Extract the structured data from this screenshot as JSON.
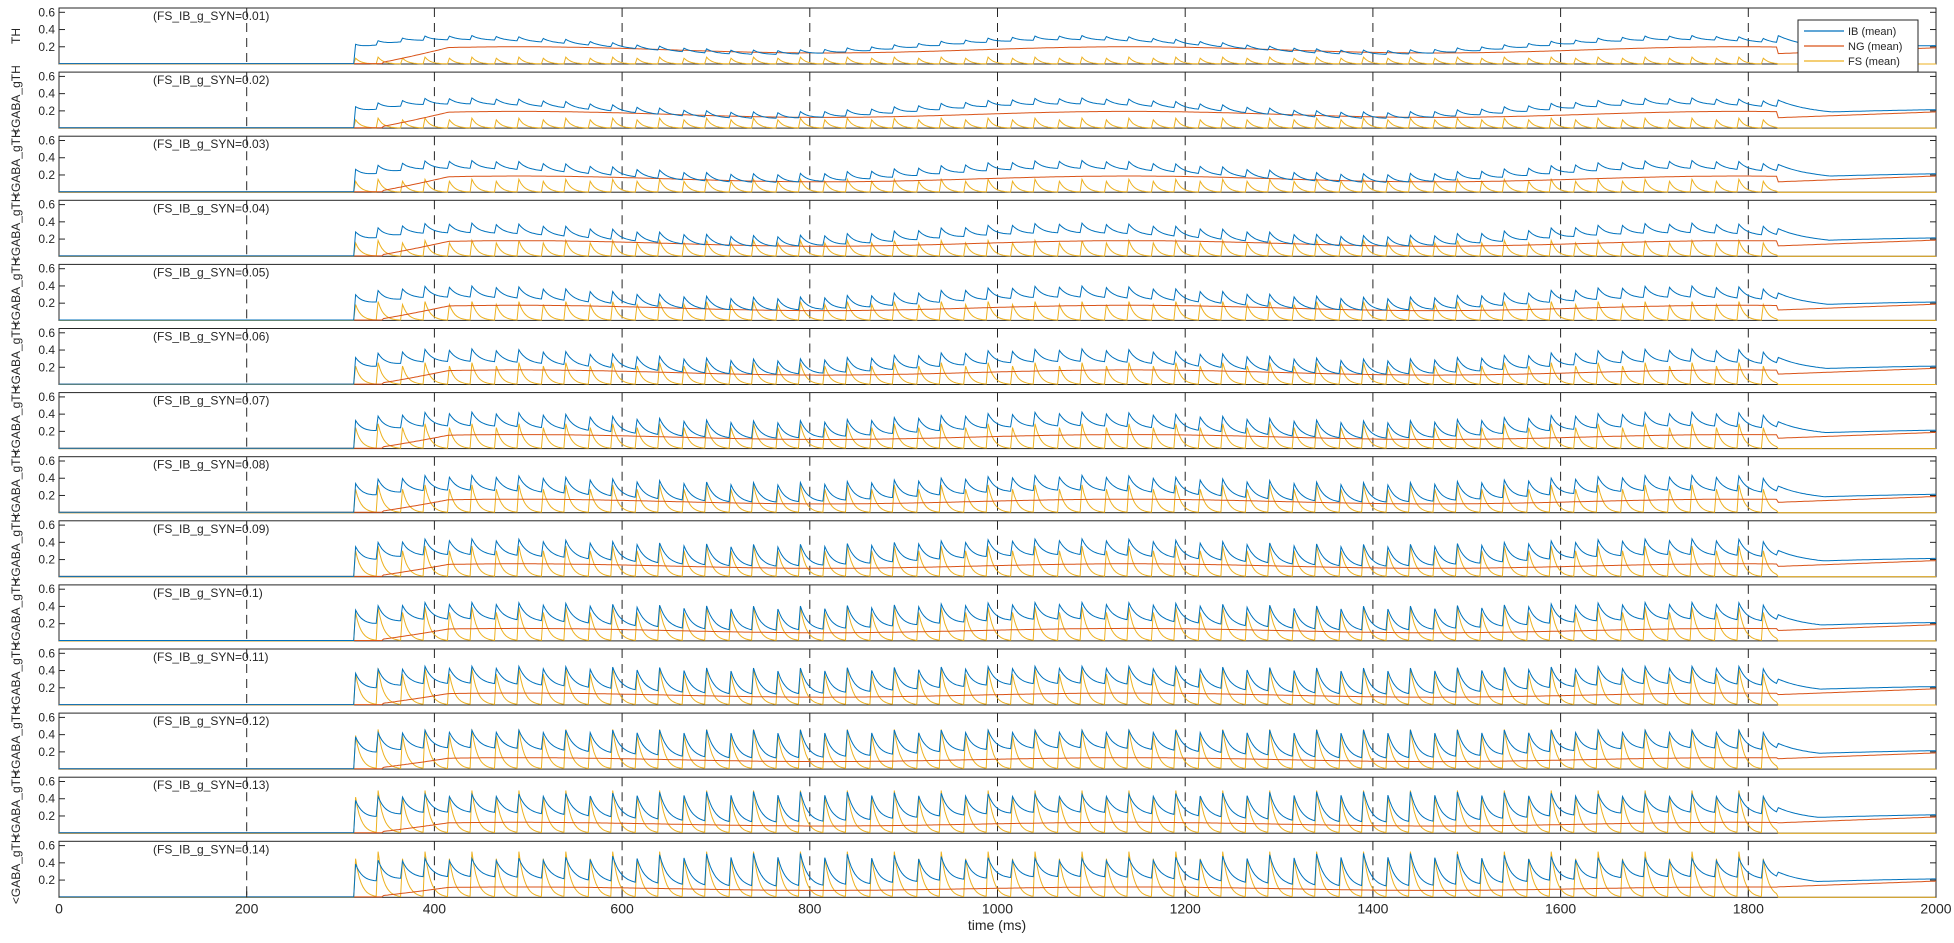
{
  "chart_data": {
    "type": "line",
    "xlabel": "time (ms)",
    "ylabel_lines": [
      "TH",
      "<GABA_gTH",
      "<GABA_gTH",
      "<GABA_gTH",
      "<GABA_gTH",
      "<GABA_gTH",
      "<GABA_gTH",
      "<GABA_gTH",
      "<GABA_gTH",
      "<GABA_gTH",
      "<GABA_gTH",
      "<GABA_gTH",
      "<GABA_gTH",
      "<GABA_gTH"
    ],
    "xlim": [
      0,
      2000
    ],
    "ylim": [
      0,
      0.65
    ],
    "x_ticks": [
      0,
      200,
      400,
      600,
      800,
      1000,
      1200,
      1400,
      1600,
      1800,
      2000
    ],
    "y_ticks": [
      0.2,
      0.4,
      0.6
    ],
    "y_tick_labels": [
      "0.2",
      "0.4",
      "0.6"
    ],
    "legend": {
      "placement": "top-right",
      "entries": [
        "IB (mean)",
        "NG (mean)",
        "FS (mean)"
      ]
    },
    "colors": {
      "IB": "#0072BD",
      "NG": "#D95319",
      "FS": "#EDB120"
    },
    "panels": [
      {
        "label": "(FS_IB_g_SYN=0.01)",
        "g": 0.01
      },
      {
        "label": "(FS_IB_g_SYN=0.02)",
        "g": 0.02
      },
      {
        "label": "(FS_IB_g_SYN=0.03)",
        "g": 0.03
      },
      {
        "label": "(FS_IB_g_SYN=0.04)",
        "g": 0.04
      },
      {
        "label": "(FS_IB_g_SYN=0.05)",
        "g": 0.05
      },
      {
        "label": "(FS_IB_g_SYN=0.06)",
        "g": 0.06
      },
      {
        "label": "(FS_IB_g_SYN=0.07)",
        "g": 0.07
      },
      {
        "label": "(FS_IB_g_SYN=0.08)",
        "g": 0.08
      },
      {
        "label": "(FS_IB_g_SYN=0.09)",
        "g": 0.09
      },
      {
        "label": "(FS_IB_g_SYN=0.1)",
        "g": 0.1
      },
      {
        "label": "(FS_IB_g_SYN=0.11)",
        "g": 0.11
      },
      {
        "label": "(FS_IB_g_SYN=0.12)",
        "g": 0.12
      },
      {
        "label": "(FS_IB_g_SYN=0.13)",
        "g": 0.13
      },
      {
        "label": "(FS_IB_g_SYN=0.14)",
        "g": 0.14
      }
    ],
    "series": [
      {
        "name": "IB (mean)",
        "key": "IB",
        "onset_ms": 315,
        "end_ms": 2000,
        "baseline": 0.2,
        "envelope_period_ms": 650
      },
      {
        "name": "NG (mean)",
        "key": "NG",
        "onset_ms": 345,
        "end_ms": 2000,
        "baseline": 0.15,
        "envelope_period_ms": 650
      },
      {
        "name": "FS (mean)",
        "key": "FS",
        "onset_ms": 315,
        "end_ms": 1830,
        "burst_interval_ms": 25
      }
    ]
  }
}
